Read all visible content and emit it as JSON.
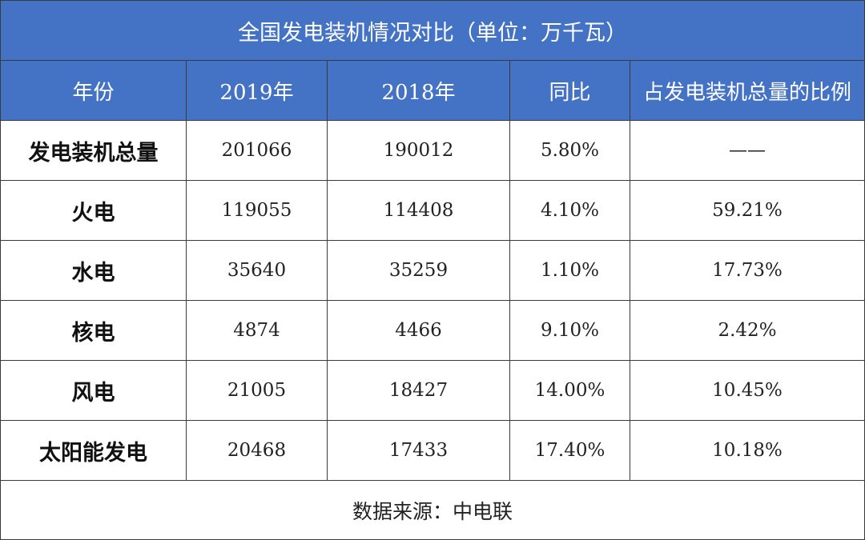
{
  "chart_data": {
    "type": "table",
    "title": "全国发电装机情况对比（单位：万千瓦）",
    "columns": [
      "年份",
      "2019年",
      "2018年",
      "同比",
      "占发电装机总量的比例"
    ],
    "rows": [
      {
        "label": "发电装机总量",
        "cells": [
          "201066",
          "190012",
          "5.80%",
          "——"
        ]
      },
      {
        "label": "火电",
        "cells": [
          "119055",
          "114408",
          "4.10%",
          "59.21%"
        ]
      },
      {
        "label": "水电",
        "cells": [
          "35640",
          "35259",
          "1.10%",
          "17.73%"
        ]
      },
      {
        "label": "核电",
        "cells": [
          "4874",
          "4466",
          "9.10%",
          "2.42%"
        ]
      },
      {
        "label": "风电",
        "cells": [
          "21005",
          "18427",
          "14.00%",
          "10.45%"
        ]
      },
      {
        "label": "太阳能发电",
        "cells": [
          "20468",
          "17433",
          "17.40%",
          "10.18%"
        ]
      }
    ],
    "source": "数据来源：中电联"
  },
  "colors": {
    "header_bg": "#4472c4",
    "header_text": "#ffffff",
    "border": "#3a3a3a"
  }
}
